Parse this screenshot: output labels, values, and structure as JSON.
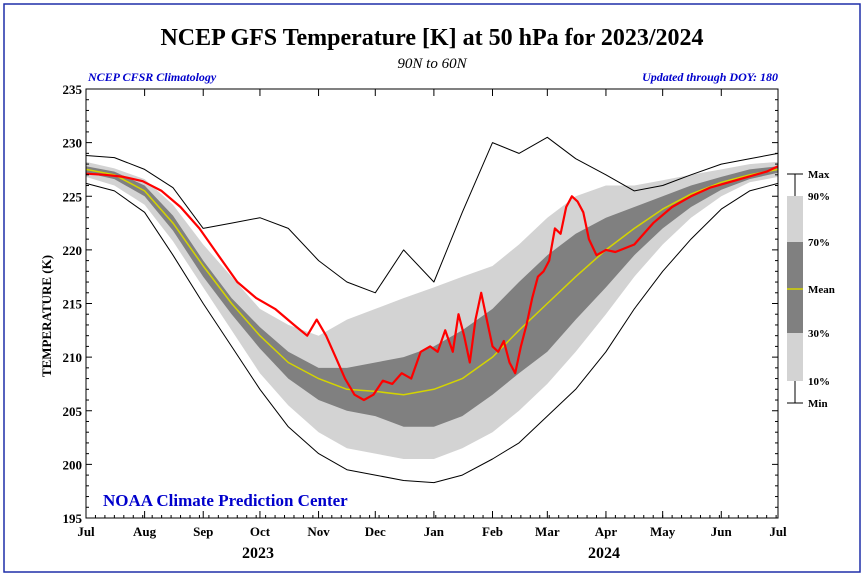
{
  "chart_data": {
    "type": "area",
    "title": "NCEP GFS Temperature [K] at 50 hPa for 2023/2024",
    "subtitle": "90N to 60N",
    "left_note": "NCEP CFSR Climatology",
    "right_note": "Updated through DOY: 180",
    "credit": "NOAA Climate Prediction Center",
    "ylabel": "TEMPERATURE (K)",
    "ylim": [
      195,
      235
    ],
    "yticks": [
      "195",
      "200",
      "205",
      "210",
      "215",
      "220",
      "225",
      "230",
      "235"
    ],
    "xlim_days": [
      0,
      366
    ],
    "month_labels": [
      "Jul",
      "Aug",
      "Sep",
      "Oct",
      "Nov",
      "Dec",
      "Jan",
      "Feb",
      "Mar",
      "Apr",
      "May",
      "Jun",
      "Jul"
    ],
    "month_days": [
      0,
      31,
      62,
      92,
      123,
      153,
      184,
      215,
      244,
      275,
      305,
      336,
      366
    ],
    "year_labels": [
      {
        "text": "2023",
        "day": 92
      },
      {
        "text": "2024",
        "day": 275
      }
    ],
    "legend": [
      "Max",
      "90%",
      "70%",
      "Mean",
      "30%",
      "10%",
      "Min"
    ],
    "colors": {
      "p10_90": "#d3d3d3",
      "p30_70": "#808080",
      "mean": "#d4d400",
      "current": "#ff0000",
      "max_min": "#000000",
      "frame": "#1f2fa8",
      "notes": "#0000cc"
    },
    "series": {
      "day": [
        0,
        15,
        31,
        46,
        62,
        77,
        92,
        107,
        123,
        138,
        153,
        168,
        184,
        199,
        215,
        229,
        244,
        259,
        275,
        290,
        305,
        320,
        336,
        351,
        366
      ],
      "max": [
        228.8,
        228.6,
        227.5,
        225.8,
        222.0,
        222.5,
        223.0,
        222.0,
        219.0,
        217.0,
        216.0,
        220.0,
        217.0,
        223.5,
        230.0,
        229.0,
        230.5,
        228.5,
        227.0,
        225.5,
        226.0,
        227.0,
        228.0,
        228.5,
        229.0
      ],
      "p90": [
        228.2,
        227.6,
        226.6,
        224.2,
        220.5,
        217.5,
        214.5,
        213.0,
        212.0,
        213.5,
        214.5,
        215.5,
        216.5,
        217.5,
        218.5,
        220.5,
        223.0,
        225.0,
        226.0,
        226.0,
        226.5,
        227.0,
        227.5,
        228.0,
        228.2
      ],
      "p70": [
        227.8,
        227.3,
        226.0,
        223.2,
        219.0,
        215.5,
        212.8,
        210.5,
        209.0,
        209.0,
        209.5,
        210.0,
        211.0,
        212.5,
        214.5,
        217.0,
        219.5,
        221.5,
        223.0,
        224.0,
        225.0,
        226.0,
        226.8,
        227.5,
        227.8
      ],
      "mean": [
        227.5,
        227.0,
        225.5,
        222.5,
        218.5,
        215.0,
        212.0,
        209.5,
        208.0,
        207.0,
        206.8,
        206.5,
        207.0,
        208.0,
        210.0,
        212.5,
        215.0,
        217.5,
        220.0,
        222.0,
        223.8,
        225.2,
        226.3,
        227.0,
        227.5
      ],
      "p30": [
        227.2,
        226.6,
        225.0,
        221.8,
        217.5,
        214.0,
        210.8,
        208.0,
        206.0,
        205.0,
        204.5,
        203.5,
        203.5,
        204.5,
        206.5,
        208.5,
        210.5,
        213.5,
        216.5,
        219.5,
        222.0,
        224.0,
        225.6,
        226.6,
        227.2
      ],
      "p10": [
        226.8,
        226.0,
        224.2,
        220.8,
        216.5,
        212.5,
        208.5,
        205.5,
        203.0,
        201.5,
        201.0,
        200.5,
        200.5,
        201.5,
        203.0,
        205.0,
        207.5,
        210.5,
        214.0,
        217.5,
        220.5,
        223.0,
        225.0,
        226.3,
        226.8
      ],
      "min": [
        226.2,
        225.5,
        223.5,
        219.5,
        215.0,
        211.0,
        207.0,
        203.5,
        201.0,
        199.5,
        199.0,
        198.5,
        198.3,
        199.0,
        200.5,
        202.0,
        204.5,
        207.0,
        210.5,
        214.5,
        218.0,
        221.0,
        223.8,
        225.5,
        226.2
      ],
      "current_day": [
        0,
        10,
        20,
        30,
        40,
        50,
        60,
        70,
        80,
        90,
        100,
        110,
        117,
        122,
        127,
        132,
        137,
        142,
        147,
        152,
        157,
        162,
        167,
        172,
        177,
        182,
        186,
        190,
        194,
        197,
        200,
        203,
        206,
        209,
        212,
        215,
        218,
        221,
        224,
        227,
        230,
        233,
        236,
        239,
        242,
        245,
        248,
        251,
        254,
        257,
        260,
        263,
        266,
        270,
        275,
        280,
        290,
        300,
        310,
        320,
        330,
        340,
        350,
        360,
        366
      ],
      "current": [
        227.1,
        227.0,
        226.8,
        226.4,
        225.5,
        224.0,
        222.0,
        219.5,
        217.0,
        215.5,
        214.5,
        213.0,
        212.0,
        213.5,
        212.0,
        210.0,
        208.0,
        206.5,
        206.0,
        206.5,
        207.8,
        207.5,
        208.5,
        208.0,
        210.5,
        211.0,
        210.5,
        212.5,
        210.5,
        214.0,
        212.0,
        209.5,
        213.5,
        216.0,
        213.5,
        211.0,
        210.5,
        211.5,
        209.5,
        208.5,
        211.0,
        213.0,
        215.5,
        217.5,
        218.0,
        219.0,
        222.0,
        221.5,
        224.0,
        225.0,
        224.5,
        223.5,
        221.0,
        219.5,
        220.0,
        219.8,
        220.5,
        222.5,
        224.0,
        225.0,
        225.8,
        226.3,
        226.8,
        227.3,
        227.8
      ]
    }
  }
}
